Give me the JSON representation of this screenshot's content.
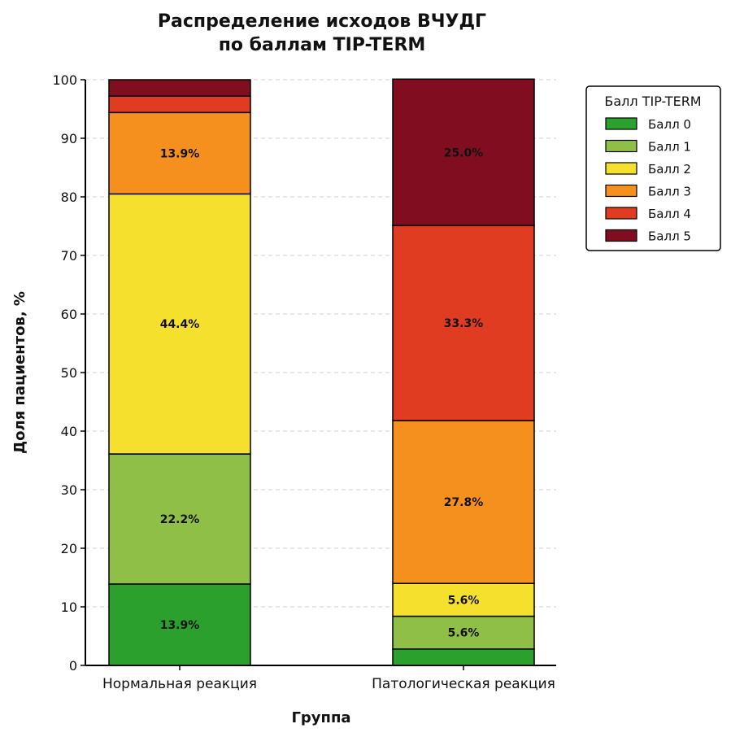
{
  "chart_data": {
    "type": "bar",
    "stacked": true,
    "title": [
      "Распределение исходов ВЧУДГ",
      "по баллам TIP-TERM"
    ],
    "xlabel": "Группа",
    "ylabel": "Доля пациентов, %",
    "ylim": [
      0,
      100
    ],
    "yticks": [
      "0",
      "10",
      "20",
      "30",
      "40",
      "50",
      "60",
      "70",
      "80",
      "90",
      "100"
    ],
    "grid": "horizontal dashed",
    "categories": [
      "Нормальная реакция",
      "Патологическая реакция"
    ],
    "legend": {
      "title": "Балл TIP-TERM",
      "placement": "outside top-right"
    },
    "series": [
      {
        "name": "Балл 0",
        "color": "#2ca02c",
        "values": [
          13.9,
          2.8
        ],
        "labels": [
          "13.9%",
          ""
        ]
      },
      {
        "name": "Балл 1",
        "color": "#90bf47",
        "values": [
          22.2,
          5.6
        ],
        "labels": [
          "22.2%",
          "5.6%"
        ]
      },
      {
        "name": "Балл 2",
        "color": "#f5e02e",
        "values": [
          44.4,
          5.6
        ],
        "labels": [
          "44.4%",
          "5.6%"
        ]
      },
      {
        "name": "Балл 3",
        "color": "#f5901e",
        "values": [
          13.9,
          27.8
        ],
        "labels": [
          "13.9%",
          "27.8%"
        ]
      },
      {
        "name": "Балл 4",
        "color": "#e03c22",
        "values": [
          2.8,
          33.3
        ],
        "labels": [
          "",
          "33.3%"
        ]
      },
      {
        "name": "Балл 5",
        "color": "#800e20",
        "values": [
          2.8,
          25.0
        ],
        "labels": [
          "",
          "25.0%"
        ]
      }
    ]
  }
}
